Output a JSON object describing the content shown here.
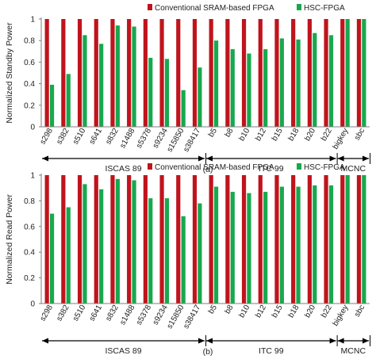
{
  "colors": {
    "conventional": "#c0141c",
    "hsc": "#18a84e",
    "axis": "#7f7f7f",
    "text": "#222222"
  },
  "chart_data": [
    {
      "type": "bar",
      "panel_label": "(a)",
      "ylabel": "Normalized Standby Power",
      "ylim": [
        0,
        1
      ],
      "yticks": [
        "0",
        "0.2",
        "0.4",
        "0.6",
        "0.8",
        "1"
      ],
      "legend": "top-right",
      "grid": false,
      "categories": [
        "s298",
        "s382",
        "s510",
        "s641",
        "s832",
        "s1488",
        "s5378",
        "s9234",
        "s15850",
        "s38417",
        "b5",
        "b8",
        "b10",
        "b12",
        "b15",
        "b18",
        "b20",
        "b22",
        "bigkey",
        "sbc"
      ],
      "groups": [
        {
          "label": "ISCAS 89",
          "start": 0,
          "end": 9
        },
        {
          "label": "ITC 99",
          "start": 10,
          "end": 17
        },
        {
          "label": "MCNC",
          "start": 18,
          "end": 19
        }
      ],
      "series": [
        {
          "name": "Conventional SRAM-based FPGA",
          "values": [
            1,
            1,
            1,
            1,
            1,
            1,
            1,
            1,
            1,
            1,
            1,
            1,
            1,
            1,
            1,
            1,
            1,
            1,
            1,
            1
          ]
        },
        {
          "name": "HSC-FPGA",
          "values": [
            0.39,
            0.49,
            0.85,
            0.77,
            0.94,
            0.93,
            0.64,
            0.63,
            0.34,
            0.55,
            0.8,
            0.72,
            0.68,
            0.72,
            0.82,
            0.81,
            0.87,
            0.85,
            1,
            1
          ]
        }
      ]
    },
    {
      "type": "bar",
      "panel_label": "(b)",
      "ylabel": "Normalized Read Power",
      "ylim": [
        0,
        1
      ],
      "yticks": [
        "0",
        "0.2",
        "0.4",
        "0.6",
        "0.8",
        "1"
      ],
      "legend": "top-right",
      "grid": false,
      "categories": [
        "s298",
        "s382",
        "s510",
        "s641",
        "s832",
        "s1488",
        "s5378",
        "s9234",
        "s15850",
        "s38417",
        "b5",
        "b8",
        "b10",
        "b12",
        "b15",
        "b18",
        "b20",
        "b22",
        "bigkey",
        "sbc"
      ],
      "groups": [
        {
          "label": "ISCAS 89",
          "start": 0,
          "end": 9
        },
        {
          "label": "ITC 99",
          "start": 10,
          "end": 17
        },
        {
          "label": "MCNC",
          "start": 18,
          "end": 19
        }
      ],
      "series": [
        {
          "name": "Conventional SRAM-based FPGA",
          "values": [
            1,
            1,
            1,
            1,
            1,
            1,
            1,
            1,
            1,
            1,
            1,
            1,
            1,
            1,
            1,
            1,
            1,
            1,
            1,
            1
          ]
        },
        {
          "name": "HSC-FPGA",
          "values": [
            0.7,
            0.75,
            0.93,
            0.89,
            0.97,
            0.96,
            0.82,
            0.82,
            0.68,
            0.78,
            0.91,
            0.87,
            0.86,
            0.87,
            0.91,
            0.91,
            0.92,
            0.92,
            1,
            1
          ]
        }
      ]
    }
  ]
}
